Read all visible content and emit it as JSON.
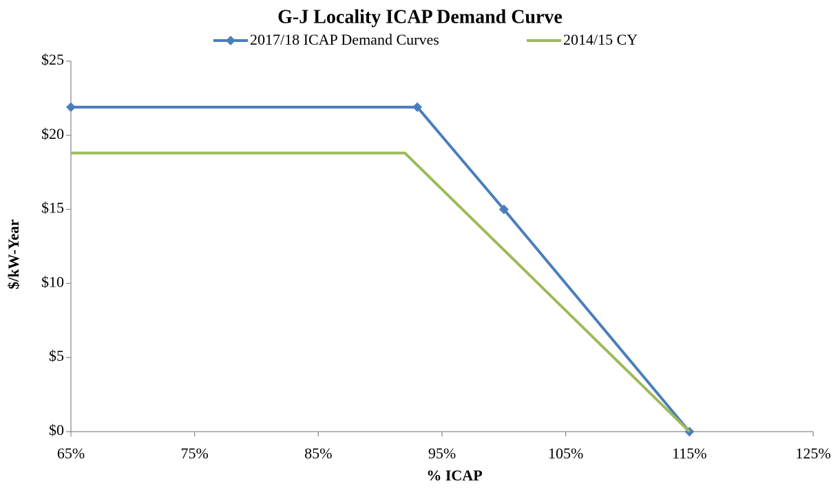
{
  "chart_data": {
    "type": "line",
    "title": "G-J Locality ICAP Demand Curve",
    "x_label": "% ICAP",
    "y_label": "$/kW-Year",
    "series": [
      {
        "name": "2017/18 ICAP Demand Curves",
        "color": "#4a7ebb",
        "marker": "diamond",
        "x": [
          65,
          93,
          100,
          115
        ],
        "values": [
          21.9,
          21.9,
          15,
          0
        ]
      },
      {
        "name": "2014/15 CY",
        "color": "#9bbb59",
        "x": [
          65,
          92,
          115
        ],
        "values": [
          18.8,
          18.8,
          0
        ]
      }
    ],
    "xlim": [
      65,
      125
    ],
    "xticks": [
      {
        "value": 65,
        "label": "65%"
      },
      {
        "value": 75,
        "label": "75%"
      },
      {
        "value": 85,
        "label": "85%"
      },
      {
        "value": 95,
        "label": "95%"
      },
      {
        "value": 105,
        "label": "105%"
      },
      {
        "value": 115,
        "label": "115%"
      },
      {
        "value": 125,
        "label": "125%"
      }
    ],
    "ylim": [
      0,
      25
    ],
    "yticks": [
      {
        "value": 0,
        "label": "$0"
      },
      {
        "value": 5,
        "label": "$5"
      },
      {
        "value": 10,
        "label": "$10"
      },
      {
        "value": 15,
        "label": "$15"
      },
      {
        "value": 20,
        "label": "$20"
      },
      {
        "value": 25,
        "label": "$25"
      }
    ],
    "grid": false,
    "legend": "top"
  }
}
